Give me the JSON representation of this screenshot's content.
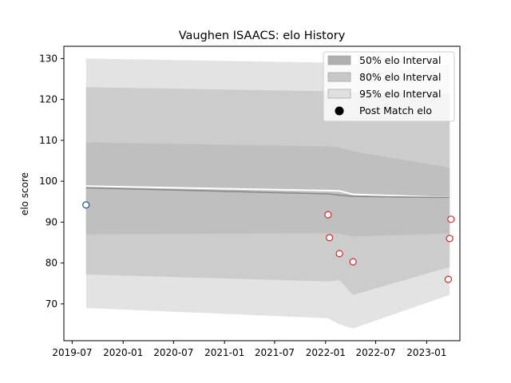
{
  "chart_data": {
    "type": "line",
    "title": "Vaughen ISAACS: elo History",
    "xlabel": "",
    "ylabel": "elo score",
    "xlim": [
      "2019-06-01",
      "2023-05-01"
    ],
    "ylim": [
      61,
      133
    ],
    "x_ticks": [
      "2019-07",
      "2020-01",
      "2020-07",
      "2021-01",
      "2021-07",
      "2022-01",
      "2022-07",
      "2023-01"
    ],
    "y_ticks": [
      70,
      80,
      90,
      100,
      110,
      120,
      130
    ],
    "grid": false,
    "legend_position": "top-right",
    "band_x": [
      "2019-08-20",
      "2022-01-10",
      "2022-02-20",
      "2022-04-10",
      "2023-03-25"
    ],
    "bands": [
      {
        "name": "95% elo Interval",
        "color": "#e3e3e3",
        "upper": [
          130,
          129,
          128.9,
          128.7,
          128.5
        ],
        "lower": [
          69,
          66.5,
          65,
          64,
          72.2
        ]
      },
      {
        "name": "80% elo Interval",
        "color": "#cccccc",
        "upper": [
          123,
          122,
          121.9,
          121.7,
          121.4
        ],
        "lower": [
          77.2,
          75.5,
          75.8,
          72.2,
          79
        ]
      },
      {
        "name": "50% elo Interval",
        "color": "#bfbfbf",
        "upper": [
          109.5,
          108.5,
          108.3,
          107.3,
          103.3
        ],
        "lower": [
          87,
          87.3,
          87.2,
          86.5,
          87.2
        ]
      }
    ],
    "series": [
      {
        "name": "",
        "color": "#ffffff",
        "y": [
          98.8,
          97.7,
          97.6,
          96.8,
          96.0
        ]
      },
      {
        "name": "",
        "color": "#8a8a8a",
        "y": [
          98.4,
          96.9,
          96.6,
          96.3,
          96.0
        ]
      }
    ],
    "post_match_legend": "Post Match elo",
    "points": [
      {
        "x": "2019-08-20",
        "y": 94.2,
        "edge": "#1f4e9c"
      },
      {
        "x": "2022-01-10",
        "y": 91.8,
        "edge": "#d62728"
      },
      {
        "x": "2022-01-15",
        "y": 86.2,
        "edge": "#d62728"
      },
      {
        "x": "2022-02-20",
        "y": 82.3,
        "edge": "#d62728"
      },
      {
        "x": "2022-04-10",
        "y": 80.3,
        "edge": "#d62728"
      },
      {
        "x": "2023-03-20",
        "y": 76.0,
        "edge": "#d62728"
      },
      {
        "x": "2023-03-25",
        "y": 86.0,
        "edge": "#d62728"
      },
      {
        "x": "2023-03-30",
        "y": 90.7,
        "edge": "#d62728"
      }
    ]
  }
}
